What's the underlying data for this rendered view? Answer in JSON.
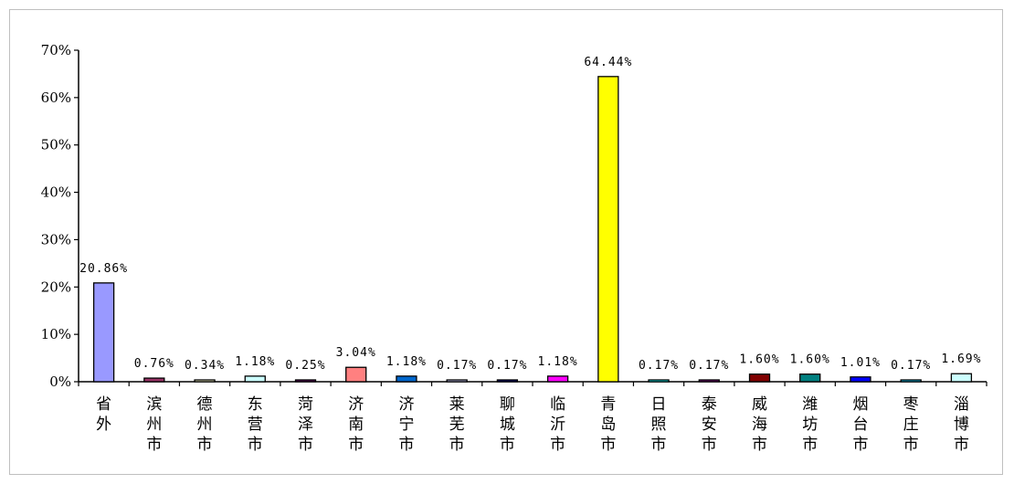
{
  "chart_data": {
    "type": "bar",
    "categories": [
      "省外",
      "滨州市",
      "德州市",
      "东营市",
      "菏泽市",
      "济南市",
      "济宁市",
      "莱芜市",
      "聊城市",
      "临沂市",
      "青岛市",
      "日照市",
      "泰安市",
      "威海市",
      "潍坊市",
      "烟台市",
      "枣庄市",
      "淄博市"
    ],
    "values": [
      20.86,
      0.76,
      0.34,
      1.18,
      0.25,
      3.04,
      1.18,
      0.17,
      0.17,
      1.18,
      64.44,
      0.17,
      0.17,
      1.6,
      1.6,
      1.01,
      0.17,
      1.69
    ],
    "data_labels": [
      "20.86%",
      "0.76%",
      "0.34%",
      "1.18%",
      "0.25%",
      "3.04%",
      "1.18%",
      "0.17%",
      "0.17%",
      "1.18%",
      "64.44%",
      "0.17%",
      "0.17%",
      "1.60%",
      "1.60%",
      "1.01%",
      "0.17%",
      "1.69%"
    ],
    "colors": [
      "#9999ff",
      "#993366",
      "#ffffcc",
      "#ccffff",
      "#660066",
      "#ff8080",
      "#0066cc",
      "#ccccff",
      "#000080",
      "#ff00ff",
      "#ffff00",
      "#00ffff",
      "#800080",
      "#800000",
      "#008080",
      "#0000ff",
      "#00ccff",
      "#ccffff"
    ],
    "ylim": [
      0,
      70
    ],
    "yticks": [
      "0%",
      "10%",
      "20%",
      "30%",
      "40%",
      "50%",
      "60%",
      "70%"
    ],
    "title": "",
    "xlabel": "",
    "ylabel": "",
    "grid": false,
    "legend": "none"
  }
}
